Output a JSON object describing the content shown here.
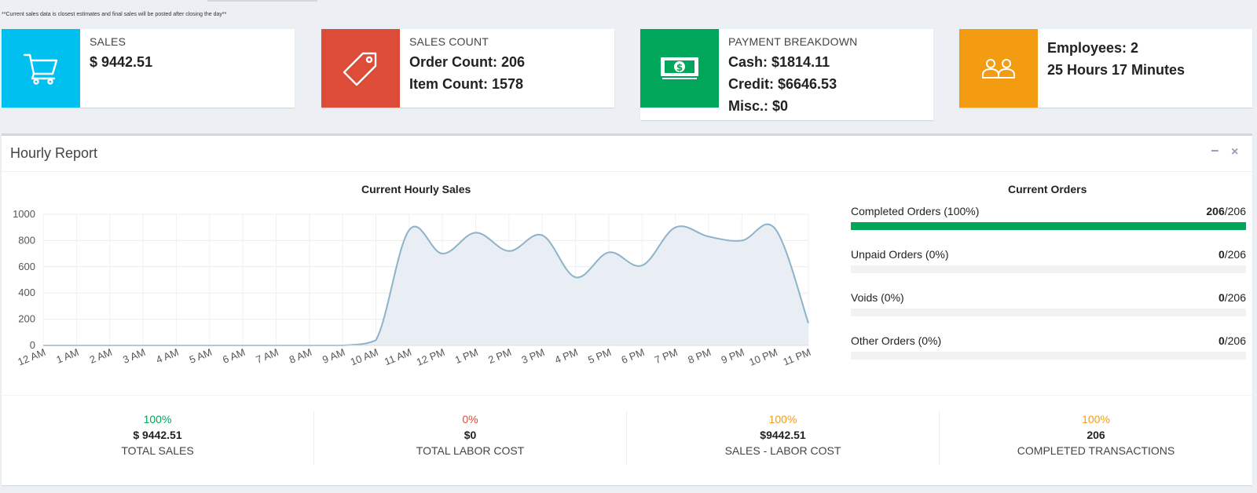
{
  "notice": "**Current sales data is closest estimates and final sales will be posted after closing the day**",
  "cards": {
    "sales": {
      "label": "SALES",
      "value": "$ 9442.51",
      "color": "#00c0ef",
      "icon": "shopping-cart-icon"
    },
    "count": {
      "label": "SALES COUNT",
      "order_count": "Order Count: 206",
      "item_count": "Item Count: 1578",
      "color": "#dd4b39",
      "icon": "tag-icon"
    },
    "payment": {
      "label": "PAYMENT BREAKDOWN",
      "cash": "Cash: $1814.11",
      "credit": "Credit: $6646.53",
      "misc": "Misc.: $0",
      "color": "#00a65a",
      "icon": "money-icon"
    },
    "employees": {
      "employees": "Employees: 2",
      "hours": "25 Hours 17 Minutes",
      "color": "#f39c12",
      "icon": "users-icon"
    }
  },
  "panel": {
    "title": "Hourly Report",
    "minimize": "−",
    "close": "×"
  },
  "chart_title": "Current Hourly Sales",
  "chart_data": {
    "type": "area",
    "title": "Current Hourly Sales",
    "x": [
      "12 AM",
      "1 AM",
      "2 AM",
      "3 AM",
      "4 AM",
      "5 AM",
      "6 AM",
      "7 AM",
      "8 AM",
      "9 AM",
      "10 AM",
      "11 AM",
      "12 PM",
      "1 PM",
      "2 PM",
      "3 PM",
      "4 PM",
      "5 PM",
      "6 PM",
      "7 PM",
      "8 PM",
      "9 PM",
      "10 PM",
      "11 PM"
    ],
    "values": [
      0,
      0,
      0,
      0,
      0,
      0,
      0,
      0,
      0,
      0,
      40,
      880,
      700,
      860,
      720,
      840,
      520,
      710,
      610,
      900,
      830,
      800,
      890,
      170
    ],
    "ylim": [
      0,
      1000
    ],
    "yticks": [
      0,
      200,
      400,
      600,
      800,
      1000
    ],
    "grid": true,
    "line_color": "#8eb2c9",
    "fill_color": "#e8eef3"
  },
  "orders": {
    "title": "Current Orders",
    "items": [
      {
        "label": "Completed Orders (100%)",
        "num": "206",
        "total": "/206",
        "fraction": 1.0
      },
      {
        "label": "Unpaid Orders (0%)",
        "num": "0",
        "total": "/206",
        "fraction": 0
      },
      {
        "label": "Voids (0%)",
        "num": "0",
        "total": "/206",
        "fraction": 0
      },
      {
        "label": "Other Orders (0%)",
        "num": "0",
        "total": "/206",
        "fraction": 0
      }
    ]
  },
  "stats": [
    {
      "pct": "100%",
      "value": "$ 9442.51",
      "label": "TOTAL SALES",
      "pct_color": "#00a65a"
    },
    {
      "pct": "0%",
      "value": "$0",
      "label": "TOTAL LABOR COST",
      "pct_color": "#dd4b39"
    },
    {
      "pct": "100%",
      "value": "$9442.51",
      "label": "SALES - LABOR COST",
      "pct_color": "#f39c12"
    },
    {
      "pct": "100%",
      "value": "206",
      "label": "COMPLETED TRANSACTIONS",
      "pct_color": "#f39c12"
    }
  ]
}
